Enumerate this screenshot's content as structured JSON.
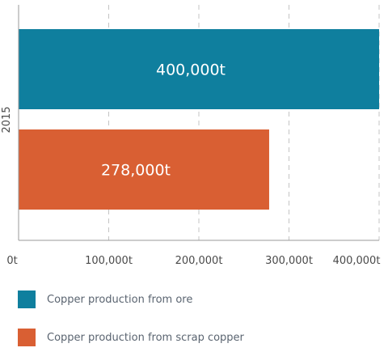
{
  "chart_data": {
    "type": "bar",
    "orientation": "horizontal",
    "title": "",
    "xlabel": "",
    "ylabel": "",
    "categories": [
      "2015"
    ],
    "series": [
      {
        "name": "Copper production from ore",
        "values": [
          400000
        ],
        "data_label": "400,000t",
        "color": "#0f7f9e"
      },
      {
        "name": "Copper production from scrap copper",
        "values": [
          278000
        ],
        "data_label": "278,000t",
        "color": "#d95f33"
      }
    ],
    "xlim": [
      0,
      400000
    ],
    "x_ticks": [
      {
        "value": 0,
        "label": "0t"
      },
      {
        "value": 100000,
        "label": "100,000t"
      },
      {
        "value": 200000,
        "label": "200,000t"
      },
      {
        "value": 300000,
        "label": "300,000t"
      },
      {
        "value": 400000,
        "label": "400,000t"
      }
    ],
    "grid": {
      "vertical": true,
      "style": "dashed",
      "color": "#c4c4c4"
    },
    "legend": {
      "position": "bottom-left"
    },
    "colors": {
      "axis": "#9a9a9a",
      "tick_text": "#4a4a4a",
      "data_label_text": "#ffffff"
    }
  }
}
